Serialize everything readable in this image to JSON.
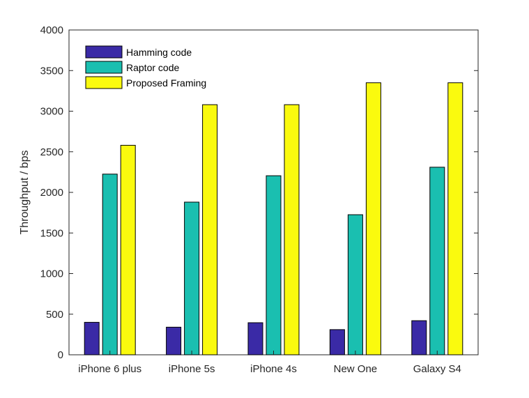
{
  "chart_data": {
    "type": "bar",
    "title": "",
    "xlabel": "",
    "ylabel": "Throughput / bps",
    "categories": [
      "iPhone 6 plus",
      "iPhone 5s",
      "iPhone 4s",
      "New One",
      "Galaxy S4"
    ],
    "series": [
      {
        "name": "Hamming code",
        "color": "#3a2aa6",
        "values": [
          400,
          340,
          395,
          310,
          420
        ]
      },
      {
        "name": "Raptor code",
        "color": "#1abfb0",
        "values": [
          2225,
          1880,
          2205,
          1725,
          2310
        ]
      },
      {
        "name": "Proposed Framing",
        "color": "#fafa0e",
        "values": [
          2580,
          3080,
          3080,
          3350,
          3350
        ]
      }
    ],
    "ylim": [
      0,
      4000
    ],
    "yticks": [
      0,
      500,
      1000,
      1500,
      2000,
      2500,
      3000,
      3500,
      4000
    ],
    "grid": false,
    "legend_position": "top-left"
  }
}
